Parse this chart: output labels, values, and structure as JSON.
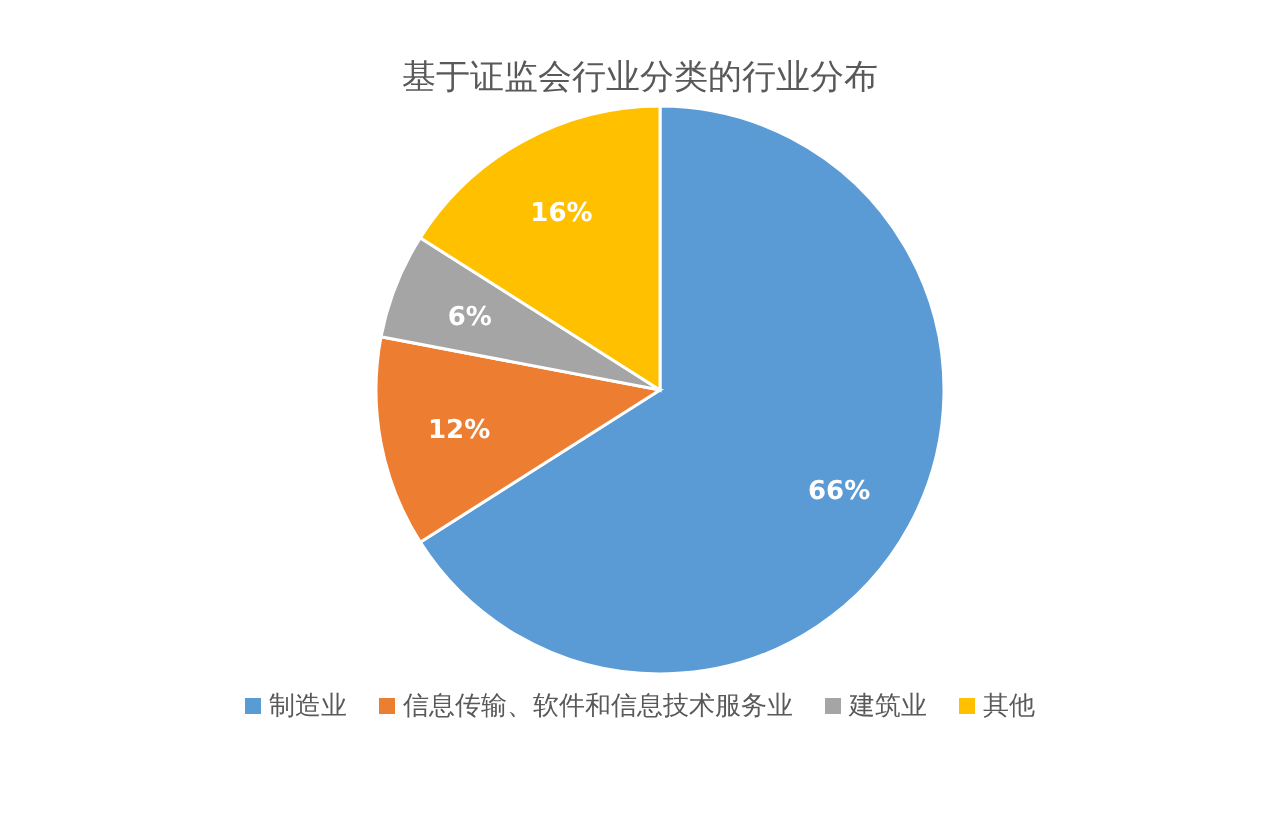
{
  "chart_data": {
    "type": "pie",
    "title": "基于证监会行业分类的行业分布",
    "categories": [
      "制造业",
      "信息传输、软件和信息技术服务业",
      "建筑业",
      "其他"
    ],
    "values": [
      66,
      12,
      6,
      16
    ],
    "colors": [
      "#5b9bd5",
      "#ed7d31",
      "#a5a5a5",
      "#ffc000"
    ],
    "value_labels": [
      "66%",
      "12%",
      "6%",
      "16%"
    ],
    "legend": "bottom"
  }
}
